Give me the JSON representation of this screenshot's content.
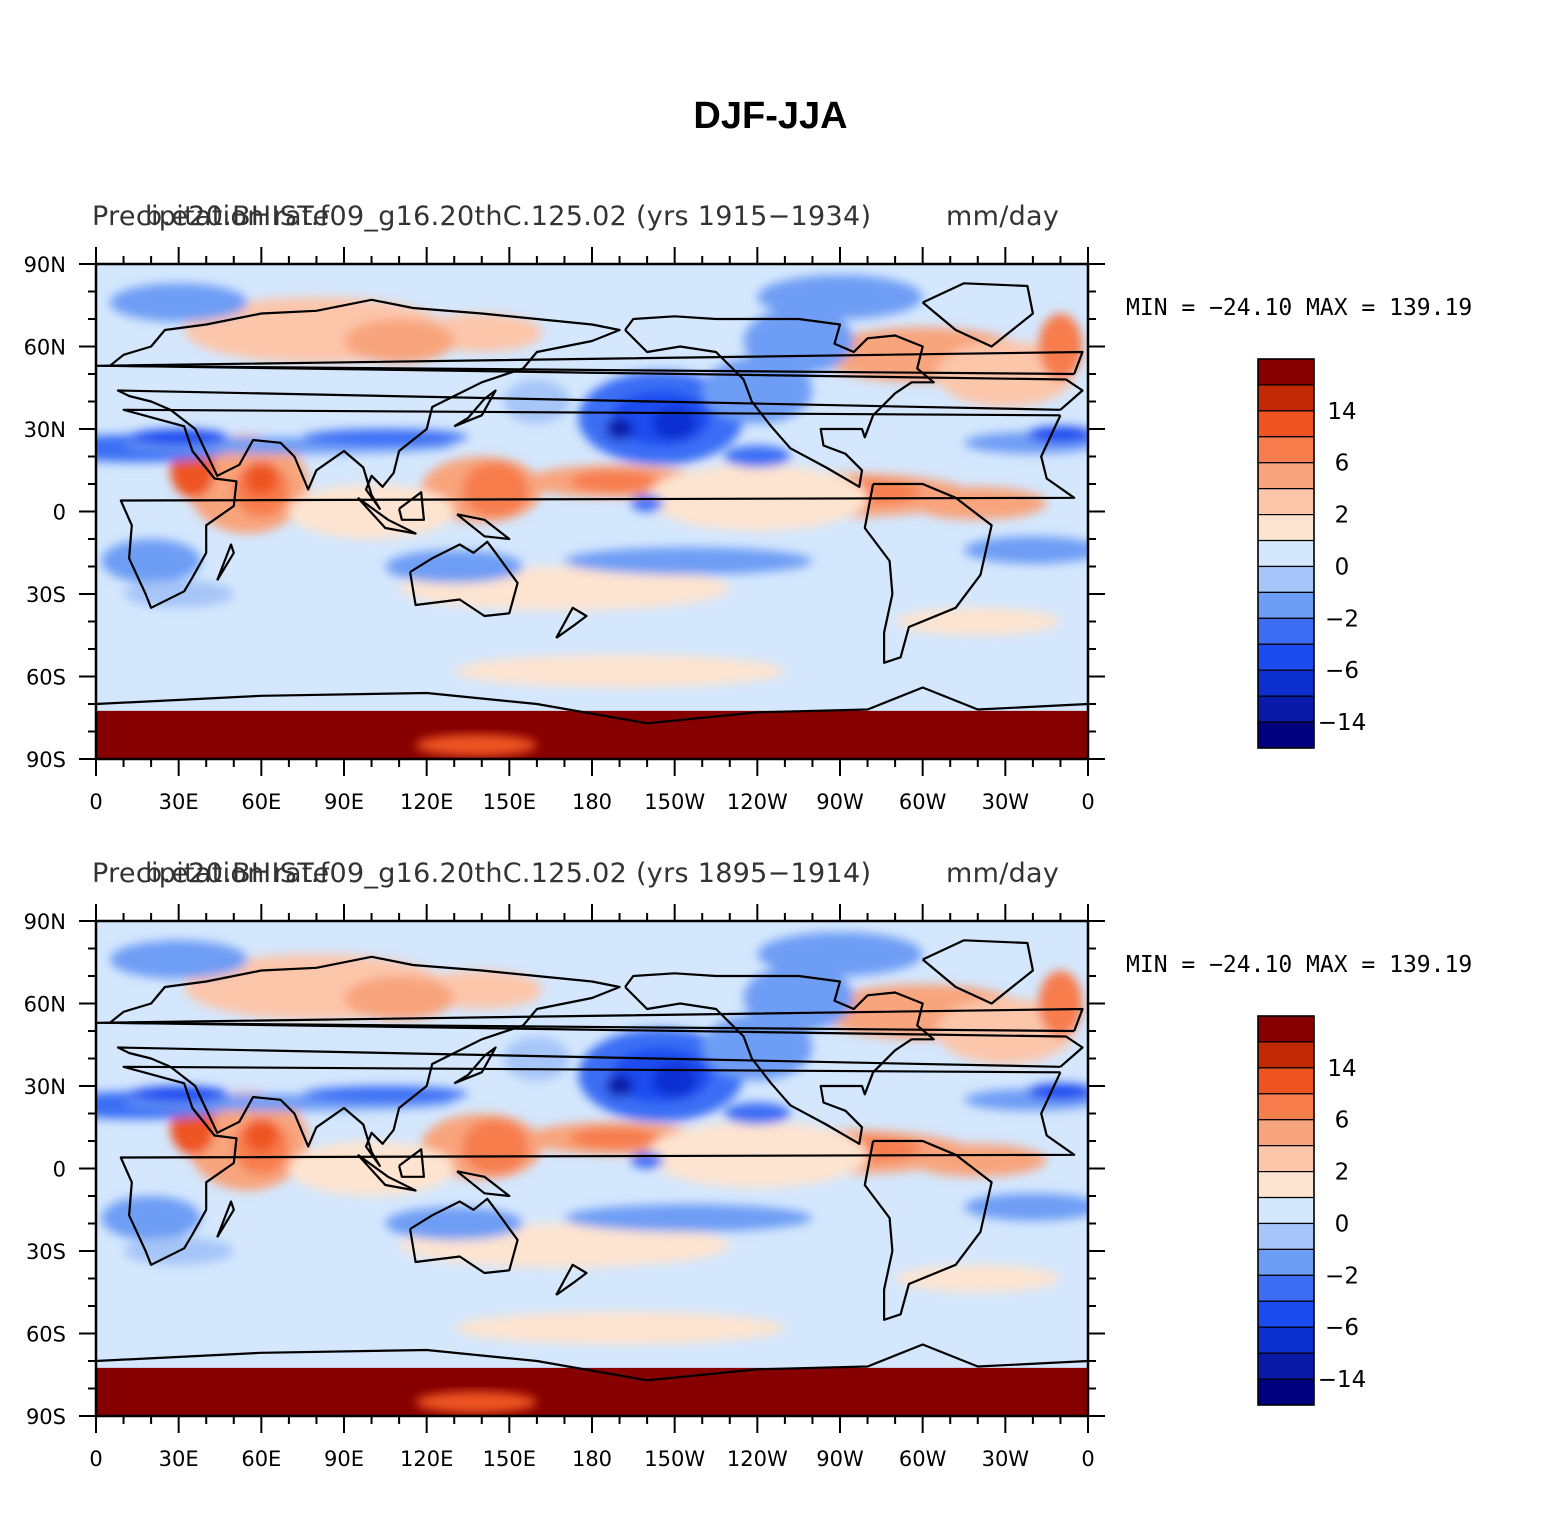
{
  "title": "DJF-JJA",
  "colorbar": {
    "colors": [
      "#00007e",
      "#0a1aa8",
      "#0c2fd0",
      "#1a4cf0",
      "#3b6ef5",
      "#6e9df5",
      "#a6c5f8",
      "#d4e7fd",
      "#fde4d0",
      "#fcc6ab",
      "#f8a47d",
      "#f77d4d",
      "#ee5422",
      "#c22a06",
      "#870000"
    ],
    "labels": [
      "14",
      "6",
      "2",
      "0",
      "−2",
      "−6",
      "−14"
    ]
  },
  "axes": {
    "y_labels": [
      "90N",
      "60N",
      "30N",
      "0",
      "30S",
      "60S",
      "90S"
    ],
    "x_labels": [
      "0",
      "30E",
      "60E",
      "90E",
      "120E",
      "150E",
      "180",
      "150W",
      "120W",
      "90W",
      "60W",
      "30W",
      "0"
    ]
  },
  "panels": [
    {
      "left_title": "Precipitation rate",
      "center_title": "b.e20.BHIST.f09_g16.20thC.125.02 (yrs 1915−1934)",
      "right_title": "mm/day",
      "minmax": "MIN = −24.10 MAX = 139.19"
    },
    {
      "left_title": "Precipitation rate",
      "center_title": "b.e20.BHIST.f09_g16.20thC.125.02 (yrs 1895−1914)",
      "right_title": "mm/day",
      "minmax": "MIN = −24.10 MAX = 139.19"
    }
  ]
}
